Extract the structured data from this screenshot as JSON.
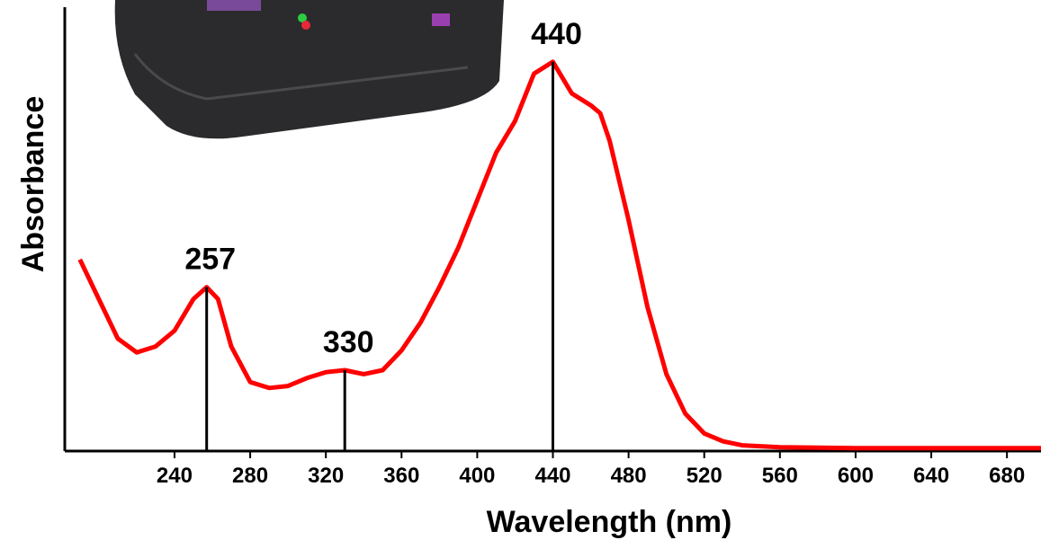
{
  "chart_data": {
    "type": "line",
    "x_label": "Wavelength (nm)",
    "y_label": "Absorbance",
    "x": [
      190,
      200,
      210,
      220,
      230,
      240,
      250,
      257,
      263,
      270,
      280,
      290,
      300,
      310,
      320,
      330,
      340,
      350,
      360,
      370,
      380,
      390,
      400,
      410,
      420,
      430,
      440,
      450,
      460,
      465,
      470,
      480,
      490,
      500,
      510,
      520,
      530,
      540,
      560,
      600,
      698
    ],
    "series": [
      {
        "color": "#ff0000",
        "values": [
          0.48,
          0.38,
          0.28,
          0.245,
          0.26,
          0.3,
          0.38,
          0.41,
          0.38,
          0.26,
          0.17,
          0.155,
          0.16,
          0.18,
          0.195,
          0.2,
          0.19,
          0.2,
          0.25,
          0.32,
          0.41,
          0.51,
          0.63,
          0.75,
          0.83,
          0.95,
          0.98,
          0.9,
          0.87,
          0.85,
          0.78,
          0.58,
          0.36,
          0.19,
          0.09,
          0.04,
          0.02,
          0.01,
          0.005,
          0.003,
          0.003
        ]
      }
    ],
    "peaks": [
      257,
      330,
      440
    ],
    "xlim": [
      182,
      698
    ],
    "ylim": [
      0,
      1.1
    ],
    "xticks": [
      240,
      280,
      320,
      360,
      400,
      440,
      480,
      520,
      560,
      600,
      640,
      680
    ]
  }
}
